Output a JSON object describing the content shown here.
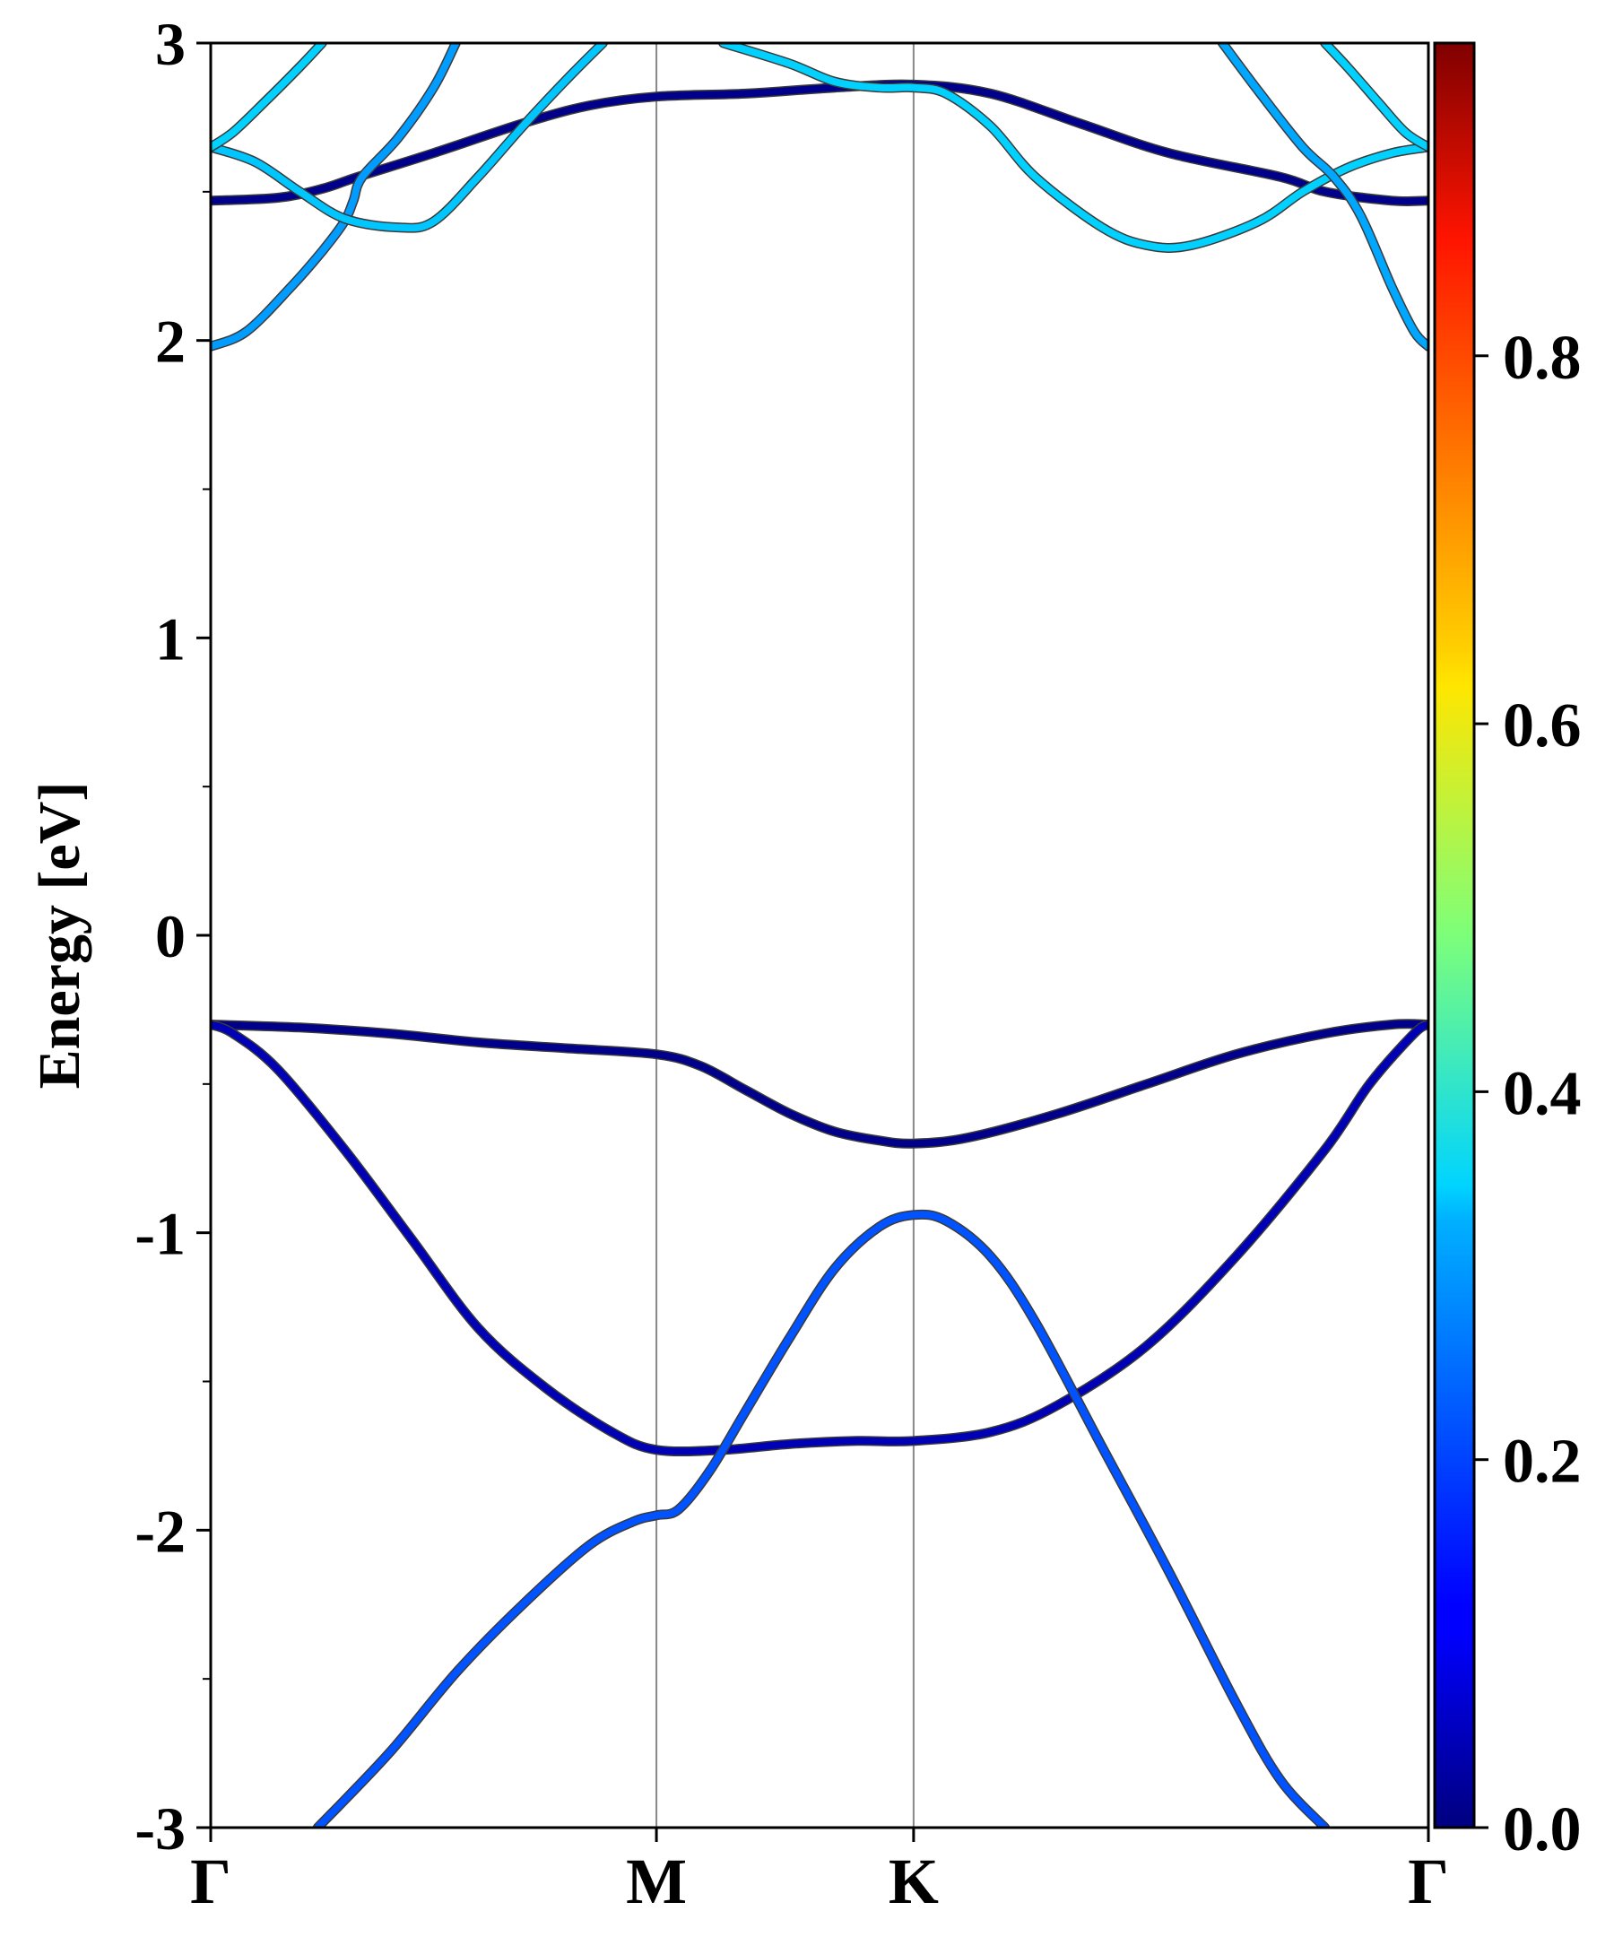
{
  "chart_data": {
    "type": "line",
    "title": "",
    "ylabel": "Energy [eV]",
    "xlabel": "",
    "ylim": [
      -3,
      3
    ],
    "yticks": [
      {
        "value": 3,
        "label": "3"
      },
      {
        "value": 2,
        "label": "2"
      },
      {
        "value": 1,
        "label": "1"
      },
      {
        "value": 0,
        "label": "0"
      },
      {
        "value": -1,
        "label": "-1"
      },
      {
        "value": -2,
        "label": "-2"
      },
      {
        "value": -3,
        "label": "-3"
      }
    ],
    "yminor_ticks": [
      2.5,
      1.5,
      0.5,
      -0.5,
      -1.5,
      -2.5
    ],
    "xlim": [
      0,
      2.732
    ],
    "kpoints": [
      {
        "label": "Γ",
        "x": 0
      },
      {
        "label": "M",
        "x": 1.0
      },
      {
        "label": "K",
        "x": 1.577
      },
      {
        "label": "Γ",
        "x": 2.732
      }
    ],
    "grid": "vertical lines at high-symmetry points",
    "colorbar": {
      "colormap": "jet",
      "range": [
        0.0,
        0.97
      ],
      "ticks": [
        {
          "value": 0.0,
          "label": "0.0"
        },
        {
          "value": 0.2,
          "label": "0.2"
        },
        {
          "value": 0.4,
          "label": "0.4"
        },
        {
          "value": 0.6,
          "label": "0.6"
        },
        {
          "value": 0.8,
          "label": "0.8"
        }
      ]
    },
    "series": [
      {
        "weight": 0.01,
        "points": [
          [
            0,
            -0.3
          ],
          [
            0.2,
            -0.31
          ],
          [
            0.4,
            -0.33
          ],
          [
            0.6,
            -0.36
          ],
          [
            0.8,
            -0.38
          ],
          [
            1.0,
            -0.4
          ],
          [
            1.1,
            -0.44
          ],
          [
            1.2,
            -0.52
          ],
          [
            1.3,
            -0.6
          ],
          [
            1.4,
            -0.66
          ],
          [
            1.5,
            -0.69
          ],
          [
            1.577,
            -0.7
          ],
          [
            1.7,
            -0.68
          ],
          [
            1.9,
            -0.6
          ],
          [
            2.1,
            -0.5
          ],
          [
            2.3,
            -0.4
          ],
          [
            2.5,
            -0.33
          ],
          [
            2.65,
            -0.3
          ],
          [
            2.732,
            -0.3
          ]
        ]
      },
      {
        "weight": 0.05,
        "points": [
          [
            0,
            -0.3
          ],
          [
            0.05,
            -0.33
          ],
          [
            0.15,
            -0.45
          ],
          [
            0.3,
            -0.72
          ],
          [
            0.45,
            -1.02
          ],
          [
            0.6,
            -1.32
          ],
          [
            0.75,
            -1.52
          ],
          [
            0.9,
            -1.67
          ],
          [
            1.0,
            -1.73
          ],
          [
            1.15,
            -1.73
          ],
          [
            1.3,
            -1.71
          ],
          [
            1.45,
            -1.7
          ],
          [
            1.577,
            -1.7
          ],
          [
            1.75,
            -1.67
          ],
          [
            1.9,
            -1.58
          ],
          [
            2.1,
            -1.38
          ],
          [
            2.3,
            -1.08
          ],
          [
            2.5,
            -0.72
          ],
          [
            2.6,
            -0.5
          ],
          [
            2.7,
            -0.33
          ],
          [
            2.732,
            -0.3
          ]
        ]
      },
      {
        "weight": 0.2,
        "points": [
          [
            0.24,
            -3.0
          ],
          [
            0.4,
            -2.75
          ],
          [
            0.55,
            -2.48
          ],
          [
            0.7,
            -2.25
          ],
          [
            0.85,
            -2.05
          ],
          [
            0.95,
            -1.97
          ],
          [
            1.0,
            -1.95
          ],
          [
            1.05,
            -1.93
          ],
          [
            1.12,
            -1.8
          ],
          [
            1.2,
            -1.6
          ],
          [
            1.3,
            -1.35
          ],
          [
            1.4,
            -1.12
          ],
          [
            1.5,
            -0.98
          ],
          [
            1.577,
            -0.94
          ],
          [
            1.65,
            -0.96
          ],
          [
            1.75,
            -1.08
          ],
          [
            1.85,
            -1.3
          ],
          [
            2.0,
            -1.72
          ],
          [
            2.15,
            -2.14
          ],
          [
            2.3,
            -2.58
          ],
          [
            2.4,
            -2.84
          ],
          [
            2.5,
            -3.0
          ]
        ]
      },
      {
        "weight": 0.01,
        "points": [
          [
            0,
            2.47
          ],
          [
            0.15,
            2.48
          ],
          [
            0.25,
            2.51
          ],
          [
            0.33,
            2.55
          ],
          [
            0.5,
            2.63
          ],
          [
            0.7,
            2.73
          ],
          [
            0.85,
            2.79
          ],
          [
            1.0,
            2.82
          ],
          [
            1.2,
            2.83
          ],
          [
            1.4,
            2.85
          ],
          [
            1.577,
            2.86
          ],
          [
            1.75,
            2.83
          ],
          [
            1.95,
            2.73
          ],
          [
            2.15,
            2.63
          ],
          [
            2.4,
            2.55
          ],
          [
            2.5,
            2.5
          ],
          [
            2.65,
            2.47
          ],
          [
            2.732,
            2.47
          ]
        ]
      },
      {
        "weight": 0.27,
        "points": [
          [
            0,
            1.98
          ],
          [
            0.08,
            2.03
          ],
          [
            0.18,
            2.18
          ],
          [
            0.25,
            2.3
          ],
          [
            0.3,
            2.4
          ],
          [
            0.32,
            2.47
          ],
          [
            0.34,
            2.55
          ],
          [
            0.42,
            2.68
          ],
          [
            0.5,
            2.85
          ],
          [
            0.55,
            3.0
          ]
        ]
      },
      {
        "weight": 0.31,
        "points": [
          [
            0,
            2.65
          ],
          [
            0.1,
            2.6
          ],
          [
            0.2,
            2.5
          ],
          [
            0.3,
            2.41
          ],
          [
            0.42,
            2.38
          ],
          [
            0.5,
            2.4
          ],
          [
            0.6,
            2.55
          ],
          [
            0.7,
            2.72
          ],
          [
            0.8,
            2.88
          ],
          [
            0.88,
            3.0
          ]
        ]
      },
      {
        "weight": 0.32,
        "points": [
          [
            0,
            2.65
          ],
          [
            0.05,
            2.7
          ],
          [
            0.12,
            2.8
          ],
          [
            0.2,
            2.92
          ],
          [
            0.25,
            3.0
          ]
        ]
      },
      {
        "weight": 0.32,
        "points": [
          [
            1.15,
            3.0
          ],
          [
            1.3,
            2.93
          ],
          [
            1.4,
            2.87
          ],
          [
            1.5,
            2.85
          ],
          [
            1.577,
            2.85
          ],
          [
            1.65,
            2.83
          ],
          [
            1.75,
            2.72
          ],
          [
            1.85,
            2.55
          ],
          [
            2.0,
            2.38
          ],
          [
            2.1,
            2.32
          ],
          [
            2.2,
            2.32
          ],
          [
            2.35,
            2.4
          ],
          [
            2.45,
            2.5
          ],
          [
            2.55,
            2.58
          ],
          [
            2.65,
            2.63
          ],
          [
            2.732,
            2.65
          ]
        ]
      },
      {
        "weight": 0.28,
        "points": [
          [
            2.27,
            3.0
          ],
          [
            2.35,
            2.84
          ],
          [
            2.45,
            2.65
          ],
          [
            2.52,
            2.55
          ],
          [
            2.58,
            2.42
          ],
          [
            2.65,
            2.18
          ],
          [
            2.7,
            2.03
          ],
          [
            2.732,
            1.98
          ]
        ]
      },
      {
        "weight": 0.32,
        "points": [
          [
            2.5,
            3.0
          ],
          [
            2.55,
            2.92
          ],
          [
            2.62,
            2.8
          ],
          [
            2.68,
            2.7
          ],
          [
            2.732,
            2.65
          ]
        ]
      }
    ]
  }
}
